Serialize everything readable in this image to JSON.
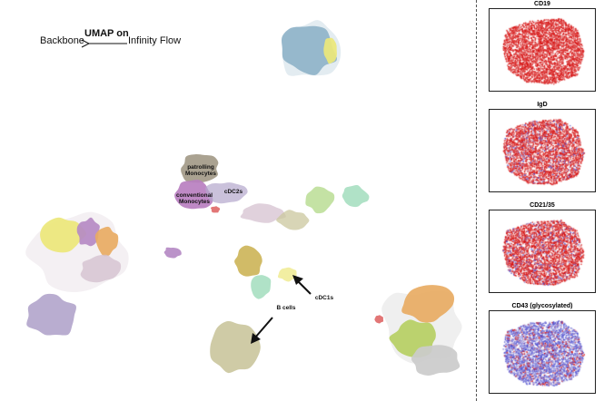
{
  "title": {
    "left": "Backbone",
    "center": "UMAP on",
    "right": "Infinity Flow"
  },
  "chart_data": {
    "type": "scatter",
    "main_plot": {
      "description": "UMAP embedding colored by cluster",
      "annotations": [
        {
          "text_lines": [
            "patrolling",
            "Monocytes"
          ]
        },
        {
          "text_lines": [
            "cDC2s"
          ]
        },
        {
          "text_lines": [
            "conventional",
            "Monocytes"
          ]
        },
        {
          "text_lines": [
            "cDC1s"
          ]
        },
        {
          "text_lines": [
            "B cells"
          ]
        }
      ]
    },
    "marker_panels": [
      {
        "title": "CD19",
        "low_fraction": 0.0,
        "high_fraction": 1.0
      },
      {
        "title": "IgD",
        "low_fraction": 0.12,
        "high_fraction": 0.88
      },
      {
        "title": "CD21/35",
        "low_fraction": 0.15,
        "high_fraction": 0.85
      },
      {
        "title": "CD43 (glycosylated)",
        "low_fraction": 0.78,
        "high_fraction": 0.22
      }
    ],
    "color_scale": {
      "low": "#2a2ac8",
      "mid": "#f2f2f2",
      "high": "#d40000"
    }
  },
  "cluster_colors": {
    "steel_blue": "#8fb3c9",
    "yellow": "#ece77a",
    "lavender": "#b3a6cc",
    "orange": "#e8ab63",
    "purple": "#b58ac4",
    "khaki": "#cbc79e",
    "light_green": "#bedf9a",
    "green": "#a5dca3",
    "mint": "#a9dfc2",
    "magenta": "#b87fc0",
    "taupe": "#a39a88",
    "gold": "#cdb55a",
    "grey": "#cbcbcb",
    "olive": "#b6cf63",
    "pink_grey": "#d5c2d0",
    "red": "#e06a6a"
  }
}
